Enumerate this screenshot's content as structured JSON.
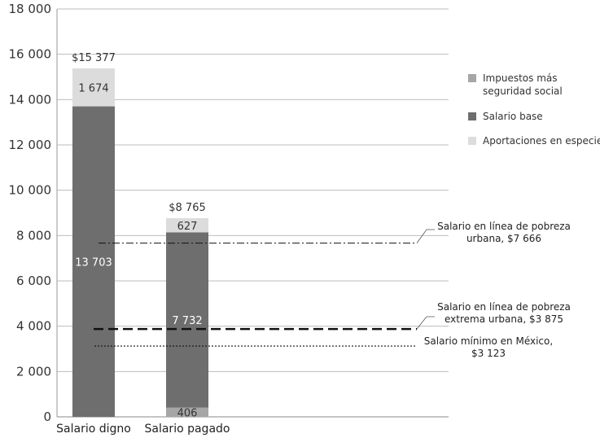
{
  "chart_data": {
    "type": "bar",
    "stacked": true,
    "categories": [
      "Salario digno",
      "Salario pagado"
    ],
    "series": [
      {
        "name": "Impuestos más seguridad social",
        "values": [
          0,
          406
        ],
        "color": "#a6a6a6"
      },
      {
        "name": "Salario base",
        "values": [
          13703,
          7732
        ],
        "color": "#6e6e6e"
      },
      {
        "name": "Aportaciones en especie",
        "values": [
          1674,
          627
        ],
        "color": "#dcdcdc"
      }
    ],
    "segment_labels": [
      [
        "",
        "13 703",
        "1 674"
      ],
      [
        "406",
        "7 732",
        "627"
      ]
    ],
    "totals": [
      15377,
      8765
    ],
    "total_labels": [
      "$15 377",
      "$8 765"
    ],
    "ylim": [
      0,
      18000
    ],
    "yticks": [
      0,
      2000,
      4000,
      6000,
      8000,
      10000,
      12000,
      14000,
      16000,
      18000
    ],
    "ytick_labels": [
      "0",
      "2 000",
      "4 000",
      "6 000",
      "8 000",
      "10 000",
      "12 000",
      "14 000",
      "16 000",
      "18 000"
    ],
    "grid": true,
    "legend_position": "right",
    "reference_lines": [
      {
        "value": 7666,
        "style": "dash-dot",
        "label": [
          "Salario en línea de pobreza",
          "urbana, $7 666"
        ]
      },
      {
        "value": 3875,
        "style": "dashed-bold",
        "label": [
          "Salario en línea de pobreza",
          "extrema urbana, $3 875"
        ]
      },
      {
        "value": 3123,
        "style": "dotted",
        "label": [
          "Salario mínimo en México,",
          "$3 123"
        ]
      }
    ]
  }
}
